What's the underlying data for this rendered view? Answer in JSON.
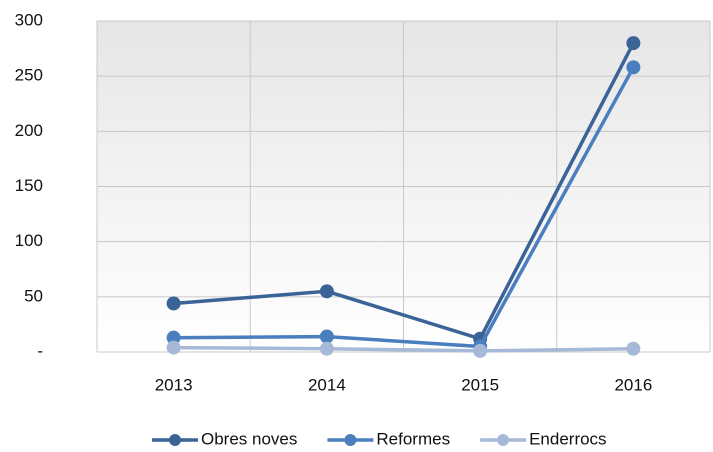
{
  "chart_data": {
    "type": "line",
    "categories": [
      "2013",
      "2014",
      "2015",
      "2016"
    ],
    "series": [
      {
        "name": "Obres noves",
        "color": "#3a6397",
        "values": [
          44,
          55,
          12,
          280
        ]
      },
      {
        "name": "Reformes",
        "color": "#4a7ebf",
        "values": [
          13,
          14,
          5,
          258
        ]
      },
      {
        "name": "Enderrocs",
        "color": "#a7b9d9",
        "values": [
          4,
          3,
          1,
          3
        ]
      }
    ],
    "ylim": [
      0,
      300
    ],
    "yticks": [
      {
        "value": 0,
        "label": "-"
      },
      50,
      100,
      150,
      200,
      250,
      300
    ],
    "grid": true,
    "legend": "bottom"
  }
}
